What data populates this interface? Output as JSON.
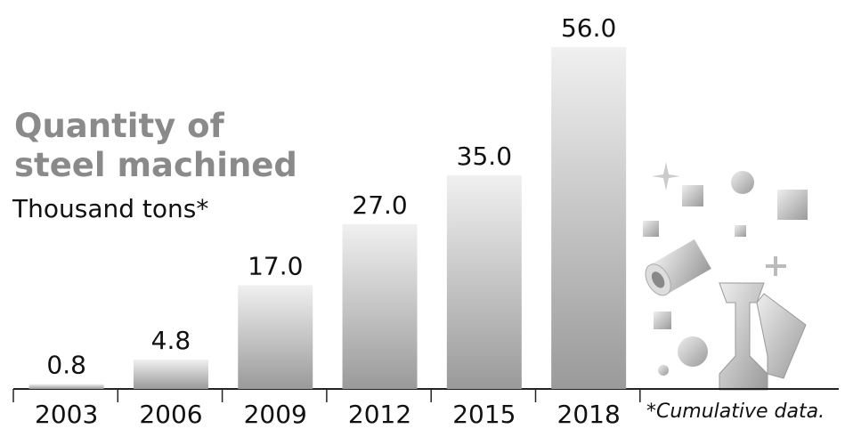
{
  "chart_data": {
    "type": "bar",
    "title": "Quantity of steel machined",
    "subtitle": "Thousand tons*",
    "note": "*Cumulative data.",
    "categories": [
      "2003",
      "2006",
      "2009",
      "2012",
      "2015",
      "2018"
    ],
    "values": [
      0.8,
      4.8,
      17.0,
      27.0,
      35.0,
      56.0
    ],
    "value_labels": [
      "0.8",
      "4.8",
      "17.0",
      "27.0",
      "35.0",
      "56.0"
    ]
  }
}
